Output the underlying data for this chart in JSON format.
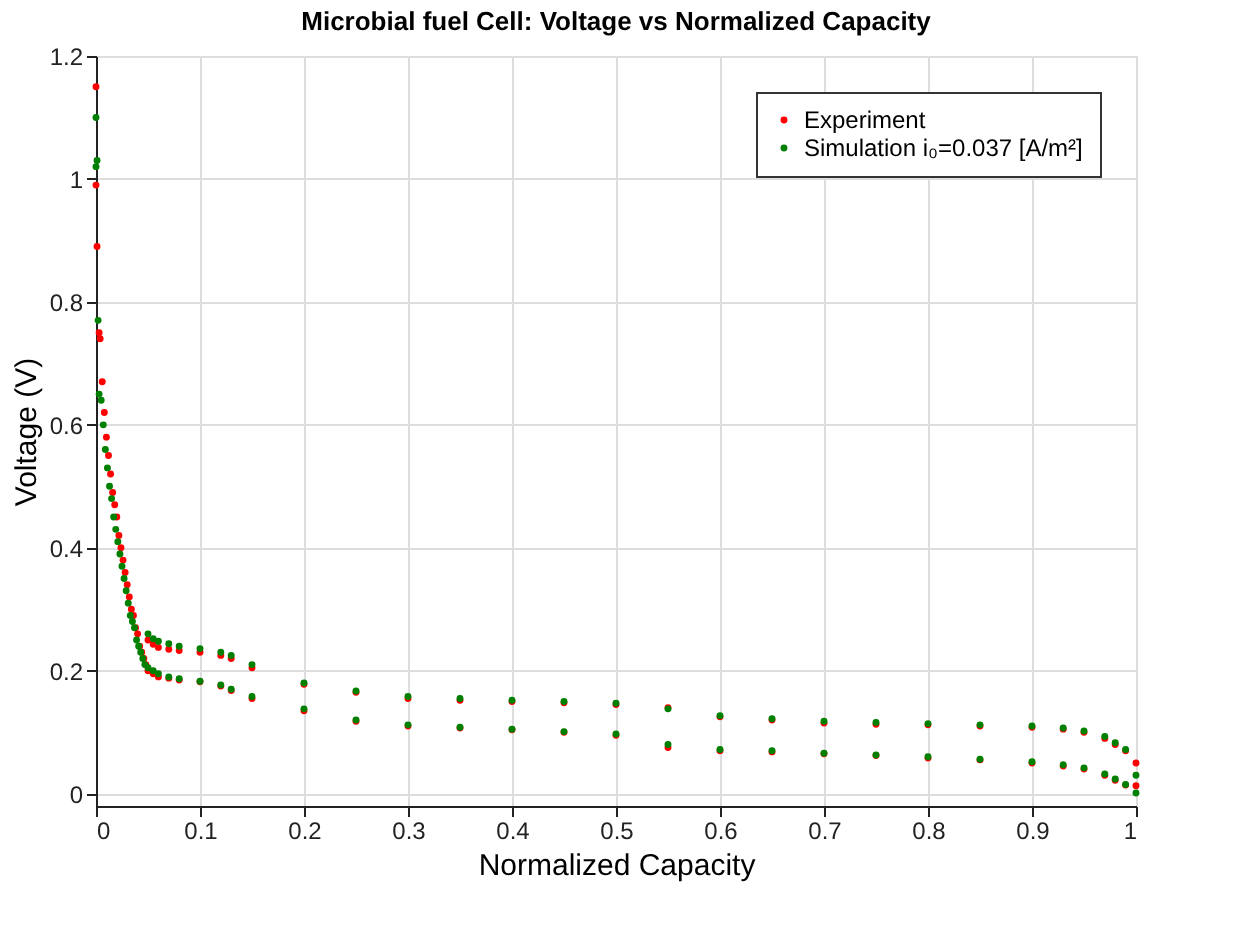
{
  "chart_data": {
    "type": "scatter",
    "title": "Microbial fuel Cell: Voltage vs Normalized Capacity",
    "xlabel": "Normalized Capacity",
    "ylabel": "Voltage (V)",
    "xlim": [
      0,
      1
    ],
    "ylim": [
      -0.02,
      1.2
    ],
    "xticks": [
      0,
      0.1,
      0.2,
      0.3,
      0.4,
      0.5,
      0.6,
      0.7,
      0.8,
      0.9,
      1
    ],
    "yticks": [
      0,
      0.2,
      0.4,
      0.6,
      0.8,
      1,
      1.2
    ],
    "grid": true,
    "legend": "top right",
    "marker": "circle",
    "series": [
      {
        "name": "Experiment",
        "color": "#ff0000",
        "x": [
          0,
          0,
          0.001,
          0.003,
          0.004,
          0.006,
          0.008,
          0.01,
          0.012,
          0.014,
          0.016,
          0.018,
          0.02,
          0.022,
          0.024,
          0.026,
          0.028,
          0.03,
          0.032,
          0.034,
          0.036,
          0.038,
          0.04,
          0.042,
          0.044,
          0.046,
          0.048,
          0.05,
          0.055,
          0.06,
          0.07,
          0.08,
          0.1,
          0.12,
          0.13,
          0.15,
          0.2,
          0.25,
          0.3,
          0.35,
          0.4,
          0.45,
          0.5,
          0.55,
          0.6,
          0.65,
          0.7,
          0.75,
          0.8,
          0.85,
          0.9,
          0.93,
          0.95,
          0.97,
          0.98,
          0.99,
          1,
          0.05,
          0.055,
          0.06,
          0.07,
          0.08,
          0.1,
          0.12,
          0.13,
          0.15,
          0.2,
          0.25,
          0.3,
          0.35,
          0.4,
          0.45,
          0.5,
          0.55,
          0.6,
          0.65,
          0.7,
          0.75,
          0.8,
          0.85,
          0.9,
          0.93,
          0.95,
          0.97,
          0.98,
          0.99,
          1
        ],
        "values": [
          1.15,
          0.99,
          0.89,
          0.75,
          0.74,
          0.67,
          0.62,
          0.58,
          0.55,
          0.52,
          0.49,
          0.47,
          0.45,
          0.42,
          0.4,
          0.38,
          0.36,
          0.34,
          0.32,
          0.3,
          0.29,
          0.27,
          0.26,
          0.24,
          0.23,
          0.22,
          0.21,
          0.2,
          0.195,
          0.19,
          0.188,
          0.185,
          0.182,
          0.175,
          0.168,
          0.155,
          0.135,
          0.118,
          0.11,
          0.107,
          0.104,
          0.1,
          0.095,
          0.075,
          0.07,
          0.068,
          0.065,
          0.062,
          0.058,
          0.055,
          0.05,
          0.045,
          0.04,
          0.03,
          0.022,
          0.014,
          0.013,
          0.25,
          0.243,
          0.238,
          0.235,
          0.233,
          0.23,
          0.225,
          0.22,
          0.205,
          0.178,
          0.165,
          0.155,
          0.152,
          0.15,
          0.148,
          0.145,
          0.14,
          0.125,
          0.12,
          0.115,
          0.113,
          0.112,
          0.11,
          0.108,
          0.105,
          0.1,
          0.09,
          0.08,
          0.07,
          0.05
        ]
      },
      {
        "name": "Simulation i₀=0.037 [A/m²]",
        "color": "#008000",
        "x": [
          0,
          0,
          0.001,
          0.002,
          0.003,
          0.005,
          0.007,
          0.009,
          0.011,
          0.013,
          0.015,
          0.017,
          0.019,
          0.021,
          0.023,
          0.025,
          0.027,
          0.029,
          0.031,
          0.033,
          0.035,
          0.037,
          0.039,
          0.041,
          0.043,
          0.045,
          0.047,
          0.05,
          0.055,
          0.06,
          0.07,
          0.08,
          0.1,
          0.12,
          0.13,
          0.15,
          0.2,
          0.25,
          0.3,
          0.35,
          0.4,
          0.45,
          0.5,
          0.55,
          0.6,
          0.65,
          0.7,
          0.75,
          0.8,
          0.85,
          0.9,
          0.93,
          0.95,
          0.97,
          0.98,
          0.99,
          1,
          0.05,
          0.055,
          0.06,
          0.07,
          0.08,
          0.1,
          0.12,
          0.13,
          0.15,
          0.2,
          0.25,
          0.3,
          0.35,
          0.4,
          0.45,
          0.5,
          0.55,
          0.6,
          0.65,
          0.7,
          0.75,
          0.8,
          0.85,
          0.9,
          0.93,
          0.95,
          0.97,
          0.98,
          0.99,
          1
        ],
        "values": [
          1.1,
          1.02,
          1.03,
          0.77,
          0.65,
          0.64,
          0.6,
          0.56,
          0.53,
          0.5,
          0.48,
          0.45,
          0.43,
          0.41,
          0.39,
          0.37,
          0.35,
          0.33,
          0.31,
          0.29,
          0.28,
          0.27,
          0.25,
          0.24,
          0.23,
          0.22,
          0.21,
          0.205,
          0.2,
          0.195,
          0.19,
          0.187,
          0.183,
          0.177,
          0.17,
          0.158,
          0.138,
          0.12,
          0.112,
          0.108,
          0.105,
          0.101,
          0.097,
          0.08,
          0.072,
          0.07,
          0.066,
          0.063,
          0.06,
          0.056,
          0.052,
          0.047,
          0.042,
          0.032,
          0.024,
          0.015,
          0.001,
          0.26,
          0.252,
          0.248,
          0.244,
          0.24,
          0.236,
          0.23,
          0.225,
          0.21,
          0.18,
          0.167,
          0.158,
          0.155,
          0.152,
          0.15,
          0.147,
          0.138,
          0.127,
          0.122,
          0.118,
          0.116,
          0.114,
          0.112,
          0.11,
          0.107,
          0.102,
          0.093,
          0.083,
          0.072,
          0.03
        ]
      }
    ]
  }
}
